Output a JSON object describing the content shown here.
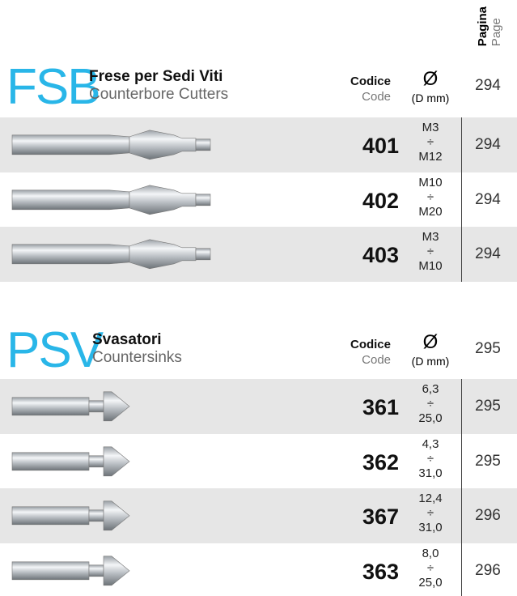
{
  "header": {
    "pagina": "Pagina",
    "page": "Page"
  },
  "sections": [
    {
      "code": "FSB",
      "title_it": "Frese per Sedi Viti",
      "title_en": "Counterbore Cutters",
      "col_code_it": "Codice",
      "col_code_en": "Code",
      "col_d_symbol": "Ø",
      "col_d_unit": "(D mm)",
      "page": "294",
      "rows": [
        {
          "code": "401",
          "d_min": "M3",
          "sep": "÷",
          "d_max": "M12",
          "page": "294"
        },
        {
          "code": "402",
          "d_min": "M10",
          "sep": "÷",
          "d_max": "M20",
          "page": "294"
        },
        {
          "code": "403",
          "d_min": "M3",
          "sep": "÷",
          "d_max": "M10",
          "page": "294"
        }
      ]
    },
    {
      "code": "PSV",
      "title_it": "Svasatori",
      "title_en": "Countersinks",
      "col_code_it": "Codice",
      "col_code_en": "Code",
      "col_d_symbol": "Ø",
      "col_d_unit": "(D mm)",
      "page": "295",
      "rows": [
        {
          "code": "361",
          "d_min": "6,3",
          "sep": "÷",
          "d_max": "25,0",
          "page": "295"
        },
        {
          "code": "362",
          "d_min": "4,3",
          "sep": "÷",
          "d_max": "31,0",
          "page": "295"
        },
        {
          "code": "367",
          "d_min": "12,4",
          "sep": "÷",
          "d_max": "31,0",
          "page": "296"
        },
        {
          "code": "363",
          "d_min": "8,0",
          "sep": "÷",
          "d_max": "25,0",
          "page": "296"
        }
      ]
    }
  ]
}
